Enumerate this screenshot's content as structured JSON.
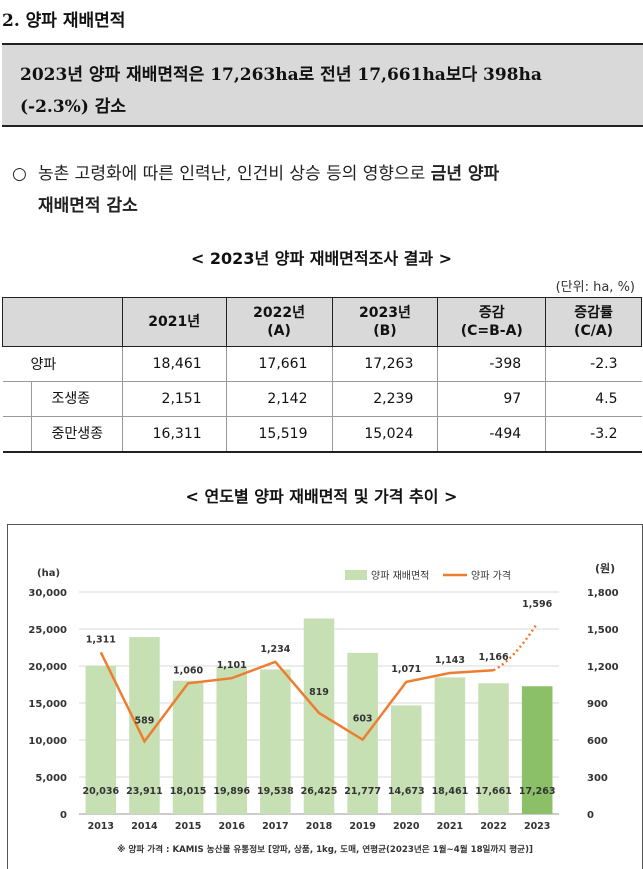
{
  "section": {
    "title": "2. 양파 재배면적"
  },
  "summary": {
    "line1": "2023년 양파 재배면적은 17,263ha로 전년 17,661ha보다 398ha",
    "line2": "(-2.3%) 감소"
  },
  "bullet": {
    "symbol": "○",
    "text_plain": "농촌 고령화에 따른 인력난, 인건비 상승 등의 영향으로 ",
    "text_bold_1": "금년 양파",
    "text_bold_2": "재배면적 감소"
  },
  "table": {
    "caption": "< 2023년 양파 재배면적조사 결과 >",
    "unit": "(단위: ha, %)",
    "headers": [
      "",
      "2021년",
      "2022년\n(A)",
      "2023년\n(B)",
      "증감\n(C=B-A)",
      "증감률\n(C/A)"
    ],
    "rows": [
      {
        "label": "양파",
        "values": [
          "18,461",
          "17,661",
          "17,263",
          "-398",
          "-2.3"
        ]
      },
      {
        "label": "조생종",
        "values": [
          "2,151",
          "2,142",
          "2,239",
          "97",
          "4.5"
        ]
      },
      {
        "label": "중만생종",
        "values": [
          "16,311",
          "15,519",
          "15,024",
          "-494",
          "-3.2"
        ]
      }
    ]
  },
  "chart_caption": "< 연도별 양파 재배면적 및 가격 추이 >",
  "chart_data": {
    "type": "bar",
    "categories": [
      "2013",
      "2014",
      "2015",
      "2016",
      "2017",
      "2018",
      "2019",
      "2020",
      "2021",
      "2022",
      "2023"
    ],
    "series": [
      {
        "name": "양파 재배면적",
        "axis": "left",
        "kind": "bar",
        "values": [
          20036,
          23911,
          18015,
          19896,
          19538,
          26425,
          21777,
          14673,
          18461,
          17661,
          17263
        ],
        "labels": [
          "20,036",
          "23,911",
          "18,015",
          "19,896",
          "19,538",
          "26,425",
          "21,777",
          "14,673",
          "18,461",
          "17,661",
          "17,263"
        ]
      },
      {
        "name": "양파 가격",
        "axis": "right",
        "kind": "line",
        "values": [
          1311,
          589,
          1060,
          1101,
          1234,
          819,
          603,
          1071,
          1143,
          1166,
          null
        ],
        "projected": {
          "from": "2022",
          "to": "2023",
          "value": 1596
        },
        "labels": [
          "1,311",
          "589",
          "1,060",
          "1,101",
          "1,234",
          "819",
          "603",
          "1,071",
          "1,143",
          "1,166",
          "1,596"
        ]
      }
    ],
    "left_axis": {
      "unit": "(ha)",
      "ylim": [
        0,
        30000
      ],
      "ticks": [
        "0",
        "5,000",
        "10,000",
        "15,000",
        "20,000",
        "25,000",
        "30,000"
      ]
    },
    "right_axis": {
      "unit": "(원)",
      "ylim": [
        0,
        1800
      ],
      "ticks": [
        "0",
        "300",
        "600",
        "900",
        "1,200",
        "1,500",
        "1,800"
      ]
    },
    "grid": true,
    "legend_position": "top-right",
    "footnote": "※ 양파 가격 : KAMIS 농산물 유통정보 [양파, 상품, 1kg, 도매, 연평균(2023년은 1월~4월 18일까지 평균)]",
    "colors": {
      "bar": "#c6e0b4",
      "bar_highlight": "#8cc068",
      "line": "#ed7d31",
      "grid": "#d9d9d9"
    }
  }
}
